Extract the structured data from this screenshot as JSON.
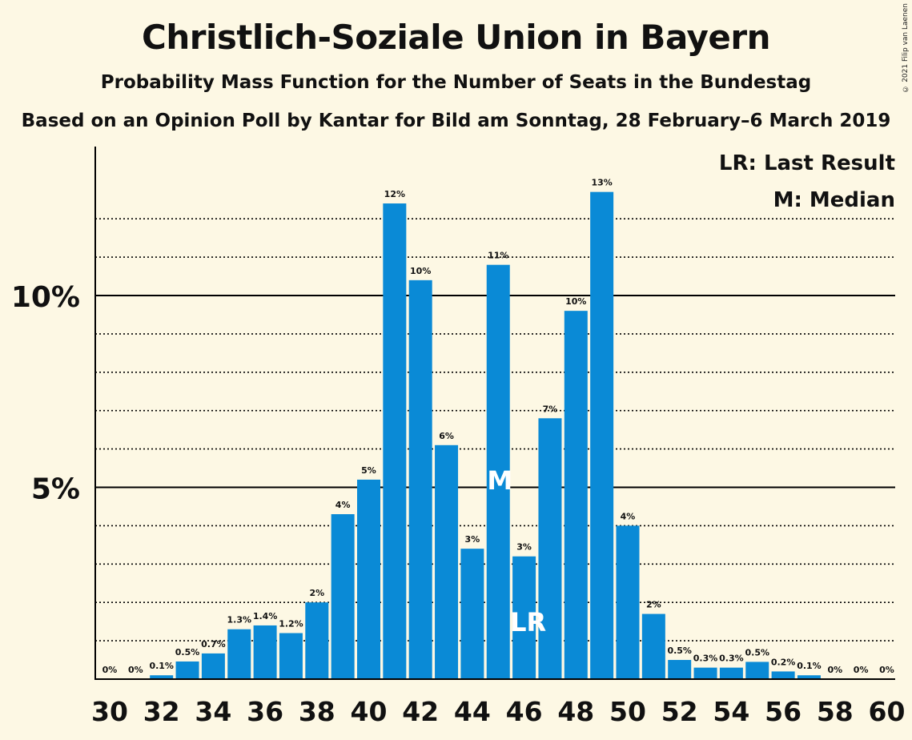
{
  "title": "Christlich-Soziale Union in Bayern",
  "subtitle": "Probability Mass Function for the Number of Seats in the Bundestag",
  "subtitle2": "Based on an Opinion Poll by Kantar for Bild am Sonntag, 28 February–6 March 2019",
  "copyright": "© 2021 Filip van Laenen",
  "colors": {
    "bar": "#0a8ad6",
    "background": "#fdf8e4",
    "text": "#111111"
  },
  "chart_data": {
    "type": "bar",
    "x": [
      30,
      31,
      32,
      33,
      34,
      35,
      36,
      37,
      38,
      39,
      40,
      41,
      42,
      43,
      44,
      45,
      46,
      47,
      48,
      49,
      50,
      51,
      52,
      53,
      54,
      55,
      56,
      57,
      58,
      59,
      60
    ],
    "values": [
      0,
      0,
      0.1,
      0.46,
      0.67,
      1.3,
      1.4,
      1.2,
      2.0,
      4.3,
      5.2,
      12.4,
      10.4,
      6.1,
      3.4,
      10.8,
      3.2,
      6.8,
      9.6,
      12.7,
      4.0,
      1.7,
      0.5,
      0.3,
      0.3,
      0.45,
      0.2,
      0.1,
      0,
      0,
      0
    ],
    "labels": [
      "0%",
      "0%",
      "0.1%",
      "0.5%",
      "0.7%",
      "1.3%",
      "1.4%",
      "1.2%",
      "2%",
      "4%",
      "5%",
      "12%",
      "10%",
      "6%",
      "3%",
      "11%",
      "3%",
      "7%",
      "10%",
      "13%",
      "4%",
      "2%",
      "0.5%",
      "0.3%",
      "0.3%",
      "0.5%",
      "0.2%",
      "0.1%",
      "0%",
      "0%",
      "0%"
    ],
    "x_ticks": [
      30,
      32,
      34,
      36,
      38,
      40,
      42,
      44,
      46,
      48,
      50,
      52,
      54,
      56,
      58,
      60
    ],
    "y_ticks": [
      {
        "value": 5,
        "label": "5%"
      },
      {
        "value": 10,
        "label": "10%"
      }
    ],
    "ylim": [
      0,
      13.9
    ],
    "grid": "dotted lines every 1%, solid lines at 5% and 10%",
    "legend": [
      "LR: Last Result",
      "M: Median"
    ],
    "legend_position": "top-right",
    "markers": [
      {
        "x": 45,
        "text": "M",
        "at_value": 5.2
      },
      {
        "x": 46,
        "text": "LR",
        "at_value": 1.5
      }
    ]
  }
}
